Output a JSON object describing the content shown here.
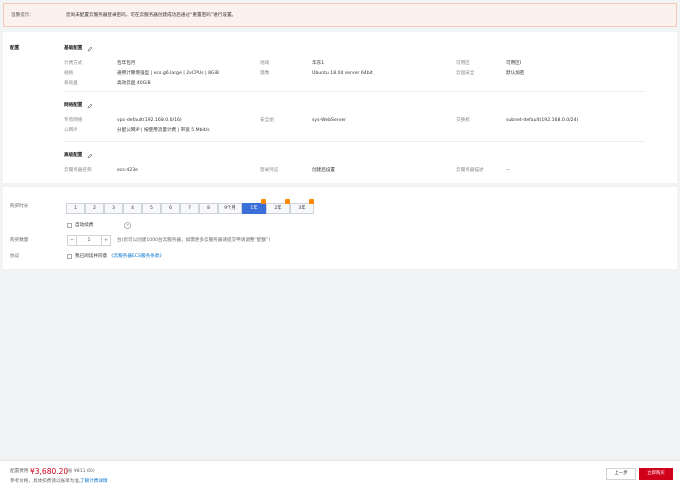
{
  "alert": {
    "label": "温馨提示：",
    "text": "您尚未配置云服务器登录密码，可在云服务器创建成功后通过“重置密码”进行设置。"
  },
  "config": {
    "label": "配置",
    "sections": [
      {
        "title": "基础配置",
        "rows": [
          [
            {
              "label": "计费方式",
              "value": "包年包月"
            },
            {
              "label": "地域",
              "value": "华东1"
            },
            {
              "label": "可用区",
              "value": "可用区I"
            }
          ],
          [
            {
              "label": "规格",
              "value": "通用计算增强型 | ecs.g6.large | 2vCPUs | 8GiB"
            },
            {
              "label": "镜像",
              "value": "Ubuntu 18.04 server 64bit"
            },
            {
              "label": "云盘安全",
              "value": "默认加密"
            }
          ],
          [
            {
              "label": "系统盘",
              "value": "高效云盘 40GiB"
            }
          ]
        ]
      },
      {
        "title": "网络配置",
        "rows": [
          [
            {
              "label": "专有网络",
              "value": "vpc-default(192.168.0.0/16)"
            },
            {
              "label": "安全组",
              "value": "sys-WebServer"
            },
            {
              "label": "交换机",
              "value": "subnet-default(192.168.0.0/24)"
            }
          ],
          [
            {
              "label": "公网IP",
              "value": "分配公网IP | 按使用流量计费 | 带宽 5 Mbit/s"
            }
          ]
        ]
      },
      {
        "title": "高级配置",
        "rows": [
          [
            {
              "label": "云服务器名称",
              "value": "ecs-423e"
            },
            {
              "label": "登录凭证",
              "value": "创建后设置"
            },
            {
              "label": "云服务器描述",
              "value": "--"
            }
          ]
        ]
      }
    ]
  },
  "duration": {
    "label": "购买时长",
    "options": [
      "1",
      "2",
      "3",
      "4",
      "5",
      "6",
      "7",
      "8",
      "9个月",
      "1年",
      "2年",
      "3年"
    ],
    "selected": "1年",
    "discounted": [
      "1年",
      "2年",
      "3年"
    ]
  },
  "auto_renew": "自动续费",
  "quantity": {
    "label": "购买数量",
    "value": 1,
    "note": "台(您可以创建1000台云服务器，如需更多云服务器请提交申请调整“配额”)"
  },
  "agreement": {
    "label": "协议",
    "text": "我已阅读并同意",
    "link": "《云服务器ECS服务条款》"
  },
  "footer": {
    "label": "配置费用",
    "price": "¥3,680.20",
    "saving": "(省 ¥811.60)",
    "note": "参考价格，具体扣费请以账单为准。",
    "link": "了解计费详情",
    "back": "上一步",
    "buy": "立即购买"
  }
}
